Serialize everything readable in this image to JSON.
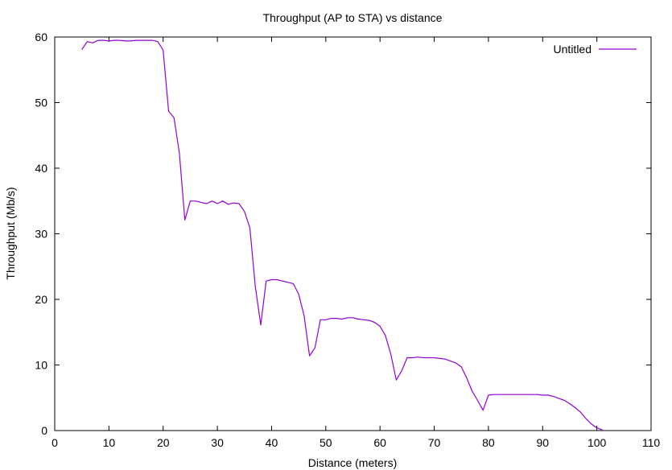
{
  "chart_data": {
    "type": "line",
    "title": "Throughput (AP to STA) vs distance",
    "xlabel": "Distance (meters)",
    "ylabel": "Throughput (Mb/s)",
    "xlim": [
      0,
      110
    ],
    "ylim": [
      0,
      60
    ],
    "xticks": [
      0,
      10,
      20,
      30,
      40,
      50,
      60,
      70,
      80,
      90,
      100,
      110
    ],
    "yticks": [
      0,
      10,
      20,
      30,
      40,
      50,
      60
    ],
    "grid": false,
    "legend_position": "top-right",
    "series": [
      {
        "name": "Untitled",
        "color": "#9400d3",
        "x": [
          5,
          6,
          7,
          8,
          9,
          10,
          11,
          12,
          13,
          14,
          15,
          16,
          17,
          18,
          19,
          20,
          21,
          22,
          23,
          24,
          25,
          26,
          27,
          28,
          29,
          30,
          31,
          32,
          33,
          34,
          35,
          36,
          37,
          38,
          39,
          40,
          41,
          42,
          43,
          44,
          45,
          46,
          47,
          48,
          49,
          50,
          51,
          52,
          53,
          54,
          55,
          56,
          57,
          58,
          59,
          60,
          61,
          62,
          63,
          64,
          65,
          66,
          67,
          68,
          69,
          70,
          71,
          72,
          73,
          74,
          75,
          76,
          77,
          78,
          79,
          80,
          81,
          82,
          83,
          84,
          85,
          86,
          87,
          88,
          89,
          90,
          91,
          92,
          93,
          94,
          95,
          96,
          97,
          98,
          99,
          100,
          101
        ],
        "y": [
          58.1,
          59.3,
          59.1,
          59.5,
          59.5,
          59.4,
          59.5,
          59.5,
          59.4,
          59.4,
          59.5,
          59.5,
          59.5,
          59.5,
          59.3,
          58.0,
          48.7,
          47.7,
          42.3,
          32.1,
          35.0,
          35.0,
          34.8,
          34.6,
          35.0,
          34.6,
          35.0,
          34.5,
          34.7,
          34.6,
          33.4,
          30.9,
          22.0,
          16.1,
          22.8,
          23.0,
          23.0,
          22.8,
          22.6,
          22.4,
          20.8,
          17.5,
          11.4,
          12.6,
          16.9,
          16.9,
          17.1,
          17.1,
          17.0,
          17.2,
          17.2,
          17.0,
          16.9,
          16.8,
          16.5,
          15.9,
          14.5,
          11.6,
          7.7,
          9.1,
          11.1,
          11.1,
          11.2,
          11.1,
          11.1,
          11.1,
          11.0,
          10.9,
          10.6,
          10.3,
          9.7,
          8.0,
          6.0,
          4.6,
          3.1,
          5.4,
          5.5,
          5.5,
          5.5,
          5.5,
          5.5,
          5.5,
          5.5,
          5.5,
          5.5,
          5.4,
          5.4,
          5.2,
          4.9,
          4.6,
          4.1,
          3.5,
          2.8,
          1.8,
          1.0,
          0.4,
          0.1
        ]
      }
    ]
  }
}
